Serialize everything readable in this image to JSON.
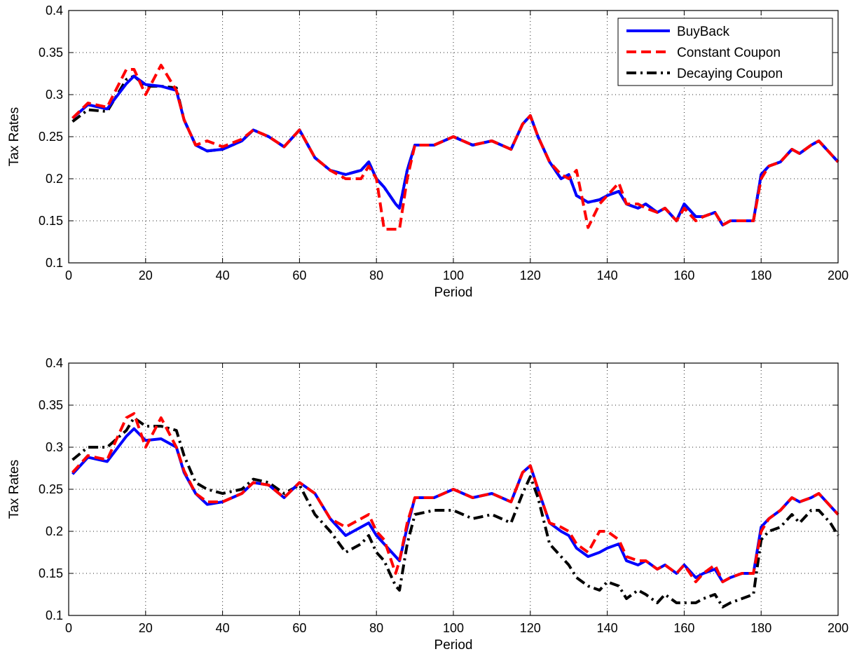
{
  "chart_data": [
    {
      "type": "line",
      "title": "",
      "xlabel": "Period",
      "ylabel": "Tax Rates",
      "xlim": [
        0,
        200
      ],
      "ylim": [
        0.1,
        0.4
      ],
      "xticks": [
        "0",
        "20",
        "40",
        "60",
        "80",
        "100",
        "120",
        "140",
        "160",
        "180",
        "200"
      ],
      "yticks": [
        "0.1",
        "0.15",
        "0.2",
        "0.25",
        "0.3",
        "0.35",
        "0.4"
      ],
      "grid": true,
      "legend": "top-right",
      "series": [
        {
          "name": "BuyBack",
          "color": "#0000ff",
          "style": "solid",
          "x": [
            1,
            5,
            10,
            15,
            17,
            20,
            24,
            28,
            30,
            33,
            36,
            40,
            45,
            48,
            52,
            56,
            60,
            64,
            68,
            72,
            76,
            78,
            80,
            82,
            85,
            86,
            88,
            90,
            95,
            100,
            105,
            110,
            115,
            118,
            120,
            122,
            125,
            128,
            130,
            132,
            135,
            138,
            140,
            143,
            145,
            148,
            150,
            153,
            155,
            158,
            160,
            163,
            165,
            168,
            170,
            172,
            175,
            178,
            180,
            182,
            185,
            188,
            190,
            193,
            195,
            198,
            200
          ],
          "y": [
            0.272,
            0.288,
            0.283,
            0.313,
            0.322,
            0.312,
            0.31,
            0.305,
            0.27,
            0.24,
            0.233,
            0.235,
            0.245,
            0.258,
            0.25,
            0.238,
            0.258,
            0.225,
            0.21,
            0.205,
            0.21,
            0.22,
            0.2,
            0.19,
            0.17,
            0.165,
            0.21,
            0.24,
            0.24,
            0.25,
            0.24,
            0.245,
            0.235,
            0.265,
            0.275,
            0.25,
            0.22,
            0.2,
            0.205,
            0.18,
            0.172,
            0.175,
            0.18,
            0.185,
            0.17,
            0.165,
            0.17,
            0.16,
            0.165,
            0.15,
            0.17,
            0.155,
            0.155,
            0.16,
            0.145,
            0.15,
            0.15,
            0.15,
            0.205,
            0.215,
            0.22,
            0.235,
            0.23,
            0.24,
            0.245,
            0.23,
            0.22
          ]
        },
        {
          "name": "Constant Coupon",
          "color": "#ff0000",
          "style": "dashed",
          "x": [
            1,
            5,
            10,
            15,
            17,
            20,
            24,
            28,
            30,
            33,
            36,
            40,
            45,
            48,
            52,
            56,
            60,
            64,
            68,
            72,
            76,
            78,
            80,
            82,
            85,
            86,
            88,
            90,
            95,
            100,
            105,
            110,
            115,
            118,
            120,
            122,
            125,
            128,
            130,
            132,
            135,
            138,
            140,
            143,
            145,
            148,
            150,
            153,
            155,
            158,
            160,
            163,
            165,
            168,
            170,
            172,
            175,
            178,
            180,
            182,
            185,
            188,
            190,
            193,
            195,
            198,
            200
          ],
          "y": [
            0.272,
            0.29,
            0.285,
            0.33,
            0.33,
            0.3,
            0.335,
            0.305,
            0.27,
            0.24,
            0.245,
            0.238,
            0.247,
            0.258,
            0.25,
            0.238,
            0.258,
            0.225,
            0.21,
            0.2,
            0.2,
            0.215,
            0.2,
            0.14,
            0.14,
            0.14,
            0.2,
            0.24,
            0.24,
            0.25,
            0.24,
            0.245,
            0.235,
            0.265,
            0.275,
            0.25,
            0.22,
            0.205,
            0.2,
            0.21,
            0.142,
            0.17,
            0.18,
            0.195,
            0.17,
            0.17,
            0.165,
            0.16,
            0.165,
            0.15,
            0.165,
            0.15,
            0.155,
            0.16,
            0.145,
            0.15,
            0.15,
            0.15,
            0.2,
            0.215,
            0.22,
            0.235,
            0.23,
            0.24,
            0.245,
            0.23,
            0.22
          ]
        },
        {
          "name": "Decaying Coupon",
          "color": "#000000",
          "style": "dashdot",
          "x": [
            1,
            5,
            10,
            15,
            17,
            20,
            24,
            28,
            30,
            33,
            36,
            40,
            45,
            48,
            52,
            56,
            60,
            64,
            68,
            72,
            76,
            78,
            80,
            82,
            85,
            86,
            88,
            90,
            95,
            100,
            105,
            110,
            115,
            118,
            120,
            122,
            125,
            128,
            130,
            132,
            135,
            138,
            140,
            143,
            145,
            148,
            150,
            153,
            155,
            158,
            160,
            163,
            165,
            168,
            170,
            172,
            175,
            178,
            180,
            182,
            185,
            188,
            190,
            193,
            195,
            198,
            200
          ],
          "y": [
            0.268,
            0.282,
            0.28,
            0.318,
            0.322,
            0.31,
            0.31,
            0.308,
            0.27,
            0.24,
            0.233,
            0.235,
            0.245,
            0.258,
            0.25,
            0.238,
            0.258,
            0.225,
            0.21,
            0.205,
            0.21,
            0.22,
            0.2,
            0.19,
            0.17,
            0.165,
            0.21,
            0.24,
            0.24,
            0.25,
            0.24,
            0.245,
            0.235,
            0.265,
            0.275,
            0.25,
            0.22,
            0.2,
            0.205,
            0.18,
            0.172,
            0.175,
            0.18,
            0.185,
            0.17,
            0.165,
            0.17,
            0.16,
            0.165,
            0.15,
            0.17,
            0.155,
            0.155,
            0.16,
            0.145,
            0.15,
            0.15,
            0.15,
            0.205,
            0.215,
            0.22,
            0.235,
            0.23,
            0.24,
            0.245,
            0.23,
            0.22
          ]
        }
      ]
    },
    {
      "type": "line",
      "title": "",
      "xlabel": "Period",
      "ylabel": "Tax Rates",
      "xlim": [
        0,
        200
      ],
      "ylim": [
        0.1,
        0.4
      ],
      "xticks": [
        "0",
        "20",
        "40",
        "60",
        "80",
        "100",
        "120",
        "140",
        "160",
        "180",
        "200"
      ],
      "yticks": [
        "0.1",
        "0.15",
        "0.2",
        "0.25",
        "0.3",
        "0.35",
        "0.4"
      ],
      "grid": true,
      "legend": "none",
      "series": [
        {
          "name": "BuyBack",
          "color": "#0000ff",
          "style": "solid",
          "x": [
            1,
            5,
            10,
            15,
            17,
            20,
            24,
            28,
            30,
            33,
            36,
            40,
            45,
            48,
            52,
            56,
            60,
            64,
            68,
            72,
            76,
            78,
            80,
            82,
            85,
            86,
            88,
            90,
            95,
            100,
            105,
            110,
            115,
            118,
            120,
            122,
            125,
            128,
            130,
            132,
            135,
            138,
            140,
            143,
            145,
            148,
            150,
            153,
            155,
            158,
            160,
            163,
            165,
            168,
            170,
            172,
            175,
            178,
            180,
            182,
            185,
            188,
            190,
            193,
            195,
            198,
            200
          ],
          "y": [
            0.268,
            0.288,
            0.283,
            0.313,
            0.322,
            0.308,
            0.31,
            0.3,
            0.27,
            0.245,
            0.232,
            0.235,
            0.245,
            0.258,
            0.255,
            0.24,
            0.258,
            0.245,
            0.215,
            0.195,
            0.205,
            0.21,
            0.195,
            0.185,
            0.17,
            0.165,
            0.205,
            0.24,
            0.24,
            0.25,
            0.24,
            0.245,
            0.235,
            0.27,
            0.278,
            0.25,
            0.21,
            0.2,
            0.195,
            0.18,
            0.17,
            0.175,
            0.18,
            0.185,
            0.165,
            0.16,
            0.165,
            0.155,
            0.16,
            0.15,
            0.16,
            0.145,
            0.15,
            0.155,
            0.14,
            0.145,
            0.15,
            0.15,
            0.205,
            0.215,
            0.225,
            0.24,
            0.235,
            0.24,
            0.245,
            0.23,
            0.22
          ]
        },
        {
          "name": "Constant Coupon",
          "color": "#ff0000",
          "style": "dashed",
          "x": [
            1,
            5,
            10,
            15,
            17,
            20,
            24,
            28,
            30,
            33,
            36,
            40,
            45,
            48,
            52,
            56,
            60,
            64,
            68,
            72,
            76,
            78,
            80,
            82,
            85,
            86,
            88,
            90,
            95,
            100,
            105,
            110,
            115,
            118,
            120,
            122,
            125,
            128,
            130,
            132,
            135,
            138,
            140,
            143,
            145,
            148,
            150,
            153,
            155,
            158,
            160,
            163,
            165,
            168,
            170,
            172,
            175,
            178,
            180,
            182,
            185,
            188,
            190,
            193,
            195,
            198,
            200
          ],
          "y": [
            0.27,
            0.29,
            0.285,
            0.335,
            0.34,
            0.3,
            0.335,
            0.3,
            0.272,
            0.245,
            0.235,
            0.235,
            0.245,
            0.258,
            0.255,
            0.24,
            0.258,
            0.245,
            0.215,
            0.205,
            0.215,
            0.22,
            0.2,
            0.19,
            0.15,
            0.165,
            0.21,
            0.24,
            0.24,
            0.25,
            0.24,
            0.245,
            0.235,
            0.27,
            0.278,
            0.25,
            0.21,
            0.205,
            0.2,
            0.185,
            0.175,
            0.2,
            0.2,
            0.19,
            0.17,
            0.165,
            0.165,
            0.155,
            0.16,
            0.15,
            0.16,
            0.14,
            0.15,
            0.16,
            0.14,
            0.145,
            0.15,
            0.15,
            0.2,
            0.215,
            0.225,
            0.24,
            0.235,
            0.24,
            0.245,
            0.23,
            0.22
          ]
        },
        {
          "name": "Decaying Coupon",
          "color": "#000000",
          "style": "dashdot",
          "x": [
            1,
            5,
            10,
            15,
            17,
            20,
            24,
            28,
            30,
            33,
            36,
            40,
            45,
            48,
            52,
            56,
            60,
            64,
            68,
            72,
            76,
            78,
            80,
            82,
            85,
            86,
            88,
            90,
            95,
            100,
            105,
            110,
            115,
            118,
            120,
            122,
            125,
            128,
            130,
            132,
            135,
            138,
            140,
            143,
            145,
            148,
            150,
            153,
            155,
            158,
            160,
            163,
            165,
            168,
            170,
            172,
            175,
            178,
            180,
            182,
            185,
            188,
            190,
            193,
            195,
            198,
            200
          ],
          "y": [
            0.285,
            0.3,
            0.3,
            0.32,
            0.335,
            0.325,
            0.325,
            0.32,
            0.29,
            0.258,
            0.25,
            0.245,
            0.25,
            0.262,
            0.258,
            0.245,
            0.255,
            0.22,
            0.2,
            0.175,
            0.185,
            0.195,
            0.175,
            0.165,
            0.135,
            0.13,
            0.185,
            0.22,
            0.225,
            0.225,
            0.215,
            0.22,
            0.21,
            0.245,
            0.265,
            0.24,
            0.185,
            0.17,
            0.16,
            0.145,
            0.135,
            0.13,
            0.14,
            0.135,
            0.12,
            0.13,
            0.125,
            0.115,
            0.125,
            0.115,
            0.115,
            0.115,
            0.12,
            0.125,
            0.11,
            0.115,
            0.12,
            0.125,
            0.19,
            0.2,
            0.205,
            0.22,
            0.21,
            0.225,
            0.225,
            0.21,
            0.195
          ]
        }
      ]
    }
  ]
}
